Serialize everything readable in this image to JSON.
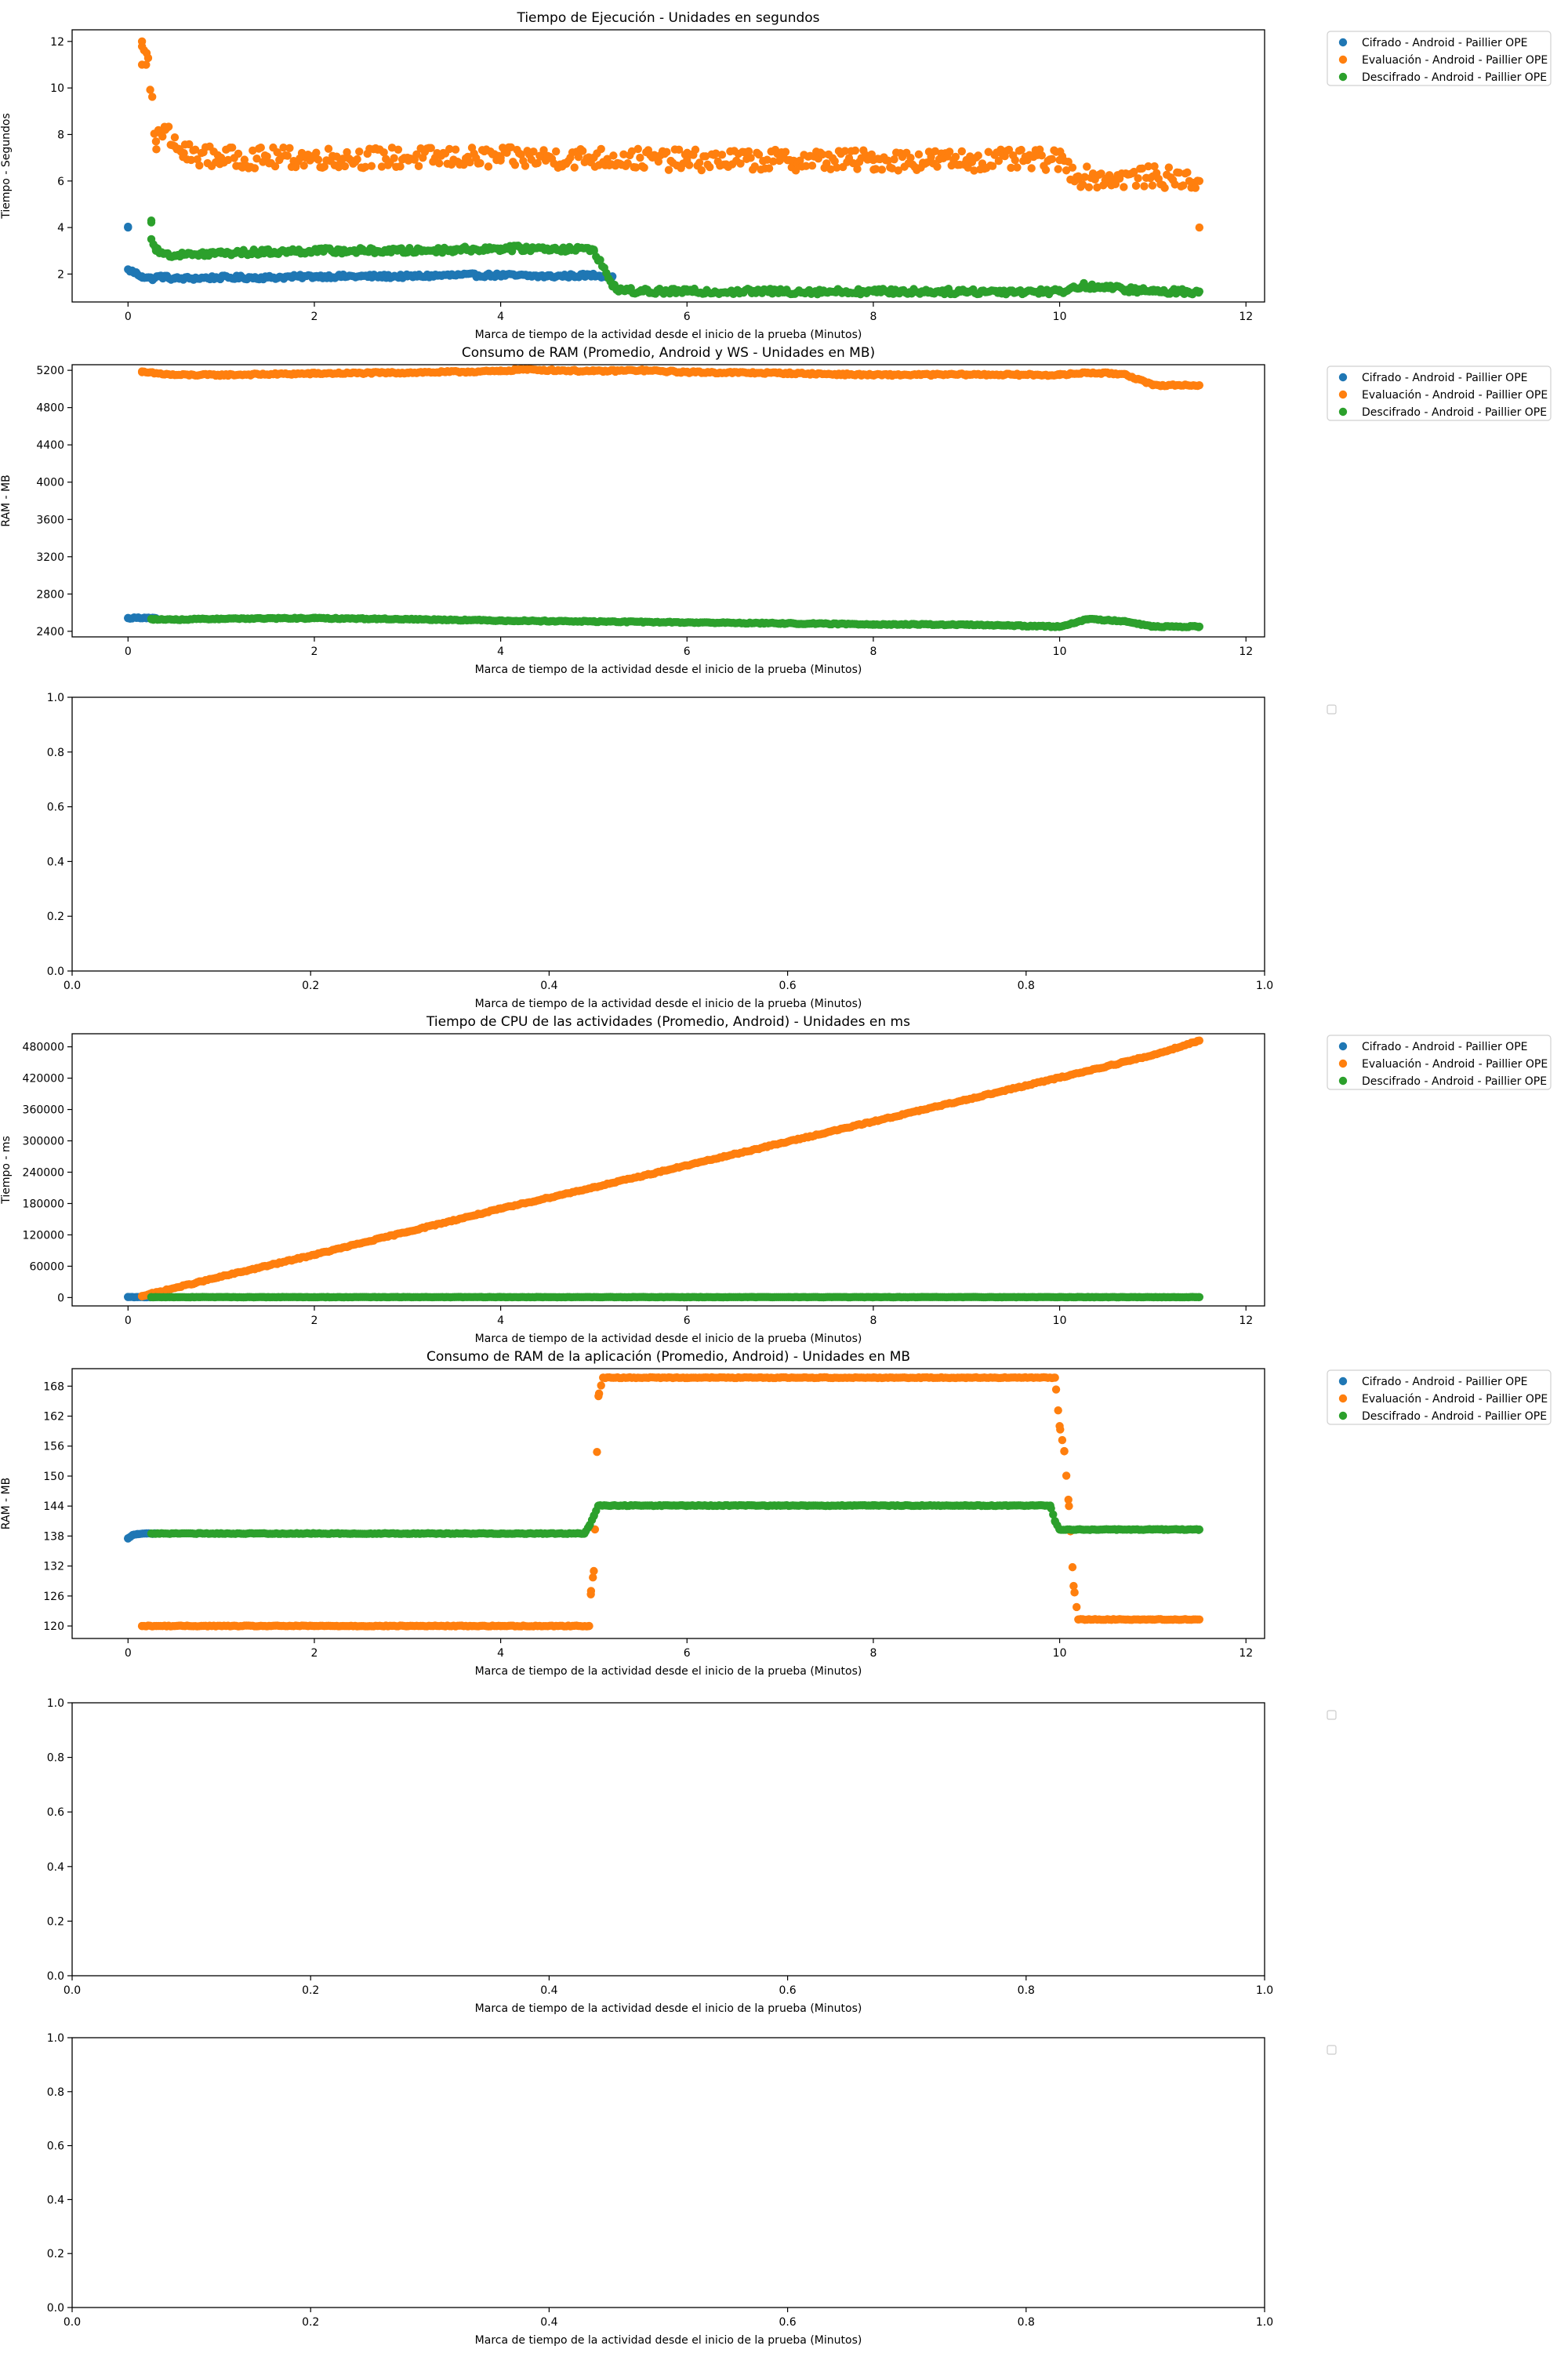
{
  "figure": {
    "xlabel": "Marca de tiempo de la actividad desde el inicio de la prueba (Minutos)",
    "legend_entries": [
      {
        "label": "Cifrado - Android - Paillier OPE",
        "color": "#1f77b4"
      },
      {
        "label": "Evaluación - Android - Paillier OPE",
        "color": "#ff7f0e"
      },
      {
        "label": "Descifrado - Android - Paillier OPE",
        "color": "#2ca02c"
      }
    ]
  },
  "chart_data": [
    {
      "type": "scatter",
      "title": "Tiempo de Ejecución - Unidades en segundos",
      "xlabel": "Marca de tiempo de la actividad desde el inicio de la prueba (Minutos)",
      "ylabel": "Tiempo - Segundos",
      "xlim": [
        -0.6,
        12.2
      ],
      "ylim": [
        0.8,
        12.5
      ],
      "xticks": [
        "0",
        "2",
        "4",
        "6",
        "8",
        "10",
        "12"
      ],
      "yticks": [
        "2",
        "4",
        "6",
        "8",
        "10",
        "12"
      ],
      "legend": "outside-right-top",
      "series": [
        {
          "name": "Cifrado - Android - Paillier OPE",
          "color": "#1f77b4",
          "x": [
            0,
            0,
            0.05,
            0.1,
            0.15,
            0.2,
            0.25,
            0.35,
            0.5,
            1,
            1.5,
            2,
            2.5,
            3,
            3.5,
            4,
            4.5,
            5,
            5.2
          ],
          "y": [
            4.0,
            2.2,
            2.1,
            2.0,
            1.9,
            1.85,
            1.8,
            1.9,
            1.8,
            1.85,
            1.85,
            1.9,
            1.9,
            1.9,
            1.95,
            1.95,
            1.9,
            1.95,
            1.9
          ]
        },
        {
          "name": "Evaluación - Android - Paillier OPE",
          "color": "#ff7f0e",
          "x": [
            0.15,
            0.15,
            0.2,
            0.3,
            0.4,
            0.5,
            0.6,
            1,
            2,
            3,
            4,
            5,
            6,
            7,
            8,
            9,
            10,
            10.2,
            10.5,
            11,
            11.5,
            11.5
          ],
          "y": [
            12.0,
            11.0,
            11.5,
            7.7,
            8.2,
            7.5,
            7.2,
            7.0,
            7.0,
            7.0,
            7.0,
            7.0,
            6.9,
            6.9,
            6.9,
            6.9,
            6.9,
            6.2,
            6.1,
            6.2,
            6.0,
            4.0
          ]
        },
        {
          "name": "Descifrado - Android - Paillier OPE",
          "color": "#2ca02c",
          "x": [
            0.25,
            0.25,
            0.3,
            0.5,
            1,
            1.5,
            2,
            2.5,
            3,
            3.5,
            4,
            4.5,
            5,
            5.2,
            5.3,
            5.5,
            6,
            7,
            8,
            9,
            10,
            10.25,
            11,
            11.5
          ],
          "y": [
            4.3,
            3.5,
            3.0,
            2.8,
            2.9,
            2.95,
            3.0,
            3.0,
            3.0,
            3.05,
            3.1,
            3.1,
            3.05,
            1.5,
            1.3,
            1.25,
            1.25,
            1.25,
            1.25,
            1.25,
            1.25,
            1.5,
            1.25,
            1.25
          ]
        }
      ]
    },
    {
      "type": "scatter",
      "title": "Consumo de RAM (Promedio, Android y WS - Unidades en MB)",
      "xlabel": "Marca de tiempo de la actividad desde el inicio de la prueba (Minutos)",
      "ylabel": "RAM - MB",
      "xlim": [
        -0.6,
        12.2
      ],
      "ylim": [
        2340,
        5260
      ],
      "xticks": [
        "0",
        "2",
        "4",
        "6",
        "8",
        "10",
        "12"
      ],
      "yticks": [
        "2400",
        "2800",
        "3200",
        "3600",
        "4000",
        "4400",
        "4800",
        "5200"
      ],
      "legend": "outside-right-top",
      "series": [
        {
          "name": "Cifrado - Android - Paillier OPE",
          "color": "#1f77b4",
          "x": [
            0,
            0.1,
            0.2,
            0.3
          ],
          "y": [
            2540,
            2545,
            2545,
            2540
          ]
        },
        {
          "name": "Evaluación - Android - Paillier OPE",
          "color": "#ff7f0e",
          "x": [
            0.15,
            0.5,
            1,
            2,
            3,
            4,
            4.2,
            5,
            5.5,
            6,
            7,
            8,
            9,
            10,
            10.3,
            10.7,
            11,
            11.5
          ],
          "y": [
            5180,
            5150,
            5150,
            5165,
            5175,
            5190,
            5210,
            5190,
            5200,
            5180,
            5170,
            5150,
            5155,
            5150,
            5175,
            5160,
            5040,
            5040
          ]
        },
        {
          "name": "Descifrado - Android - Paillier OPE",
          "color": "#2ca02c",
          "x": [
            0.25,
            0.5,
            1,
            2,
            3,
            4,
            5,
            6,
            7,
            8,
            9,
            10,
            10.3,
            10.7,
            11,
            11.5
          ],
          "y": [
            2530,
            2525,
            2535,
            2540,
            2530,
            2515,
            2505,
            2495,
            2485,
            2475,
            2470,
            2450,
            2530,
            2510,
            2450,
            2450
          ]
        }
      ]
    },
    {
      "type": "scatter",
      "title": "",
      "xlabel": "Marca de tiempo de la actividad desde el inicio de la prueba (Minutos)",
      "ylabel": "",
      "xlim": [
        0,
        1
      ],
      "ylim": [
        0,
        1
      ],
      "xticks": [
        "0.0",
        "0.2",
        "0.4",
        "0.6",
        "0.8",
        "1.0"
      ],
      "yticks": [
        "0.0",
        "0.2",
        "0.4",
        "0.6",
        "0.8",
        "1.0"
      ],
      "legend": "outside-right-top-empty",
      "series": []
    },
    {
      "type": "scatter",
      "title": "Tiempo de CPU de las actividades (Promedio, Android) - Unidades en ms",
      "xlabel": "Marca de tiempo de la actividad desde el inicio de la prueba (Minutos)",
      "ylabel": "Tiempo - ms",
      "xlim": [
        -0.6,
        12.2
      ],
      "ylim": [
        -16000,
        505000
      ],
      "xticks": [
        "0",
        "2",
        "4",
        "6",
        "8",
        "10",
        "12"
      ],
      "yticks": [
        "0",
        "60000",
        "120000",
        "180000",
        "240000",
        "300000",
        "360000",
        "420000",
        "480000"
      ],
      "legend": "outside-right-top",
      "series": [
        {
          "name": "Cifrado - Android - Paillier OPE",
          "color": "#1f77b4",
          "x": [
            0,
            0.1,
            0.2,
            0.3
          ],
          "y": [
            1000,
            800,
            800,
            800
          ]
        },
        {
          "name": "Evaluación - Android - Paillier OPE",
          "color": "#ff7f0e",
          "x": [
            0.15,
            1,
            2,
            3,
            4,
            5,
            6,
            7,
            8,
            9,
            10,
            11,
            11.5
          ],
          "y": [
            3000,
            40000,
            82000,
            126000,
            170000,
            211000,
            253000,
            295000,
            337000,
            379000,
            421000,
            464000,
            492000
          ]
        },
        {
          "name": "Descifrado - Android - Paillier OPE",
          "color": "#2ca02c",
          "x": [
            0.25,
            2,
            4,
            6,
            8,
            10,
            11.5
          ],
          "y": [
            800,
            800,
            800,
            800,
            800,
            800,
            800
          ]
        }
      ]
    },
    {
      "type": "scatter",
      "title": "Consumo de RAM de la aplicación (Promedio, Android) - Unidades en MB",
      "xlabel": "Marca de tiempo de la actividad desde el inicio de la prueba (Minutos)",
      "ylabel": "RAM - MB",
      "xlim": [
        -0.6,
        12.2
      ],
      "ylim": [
        117.5,
        171.5
      ],
      "xticks": [
        "0",
        "2",
        "4",
        "6",
        "8",
        "10",
        "12"
      ],
      "yticks": [
        "120",
        "126",
        "132",
        "138",
        "144",
        "150",
        "156",
        "162",
        "168"
      ],
      "legend": "outside-right-top",
      "series": [
        {
          "name": "Cifrado - Android - Paillier OPE",
          "color": "#1f77b4",
          "x": [
            0,
            0.05,
            0.1,
            0.2,
            0.3
          ],
          "y": [
            137.5,
            138.2,
            138.4,
            138.5,
            138.5
          ]
        },
        {
          "name": "Evaluación - Android - Paillier OPE",
          "color": "#ff7f0e",
          "x": [
            0.15,
            1,
            2,
            3,
            4,
            4.95,
            4.97,
            5.0,
            5.05,
            5.1,
            6,
            7,
            8,
            9,
            9.95,
            10.0,
            10.05,
            10.1,
            10.15,
            10.2,
            11,
            11.5
          ],
          "y": [
            120.0,
            120.0,
            120.0,
            120.0,
            120.0,
            120.0,
            127.0,
            131.0,
            166.0,
            169.7,
            169.7,
            169.7,
            169.7,
            169.7,
            169.7,
            160.0,
            155.0,
            144.0,
            128.0,
            121.3,
            121.3,
            121.3
          ]
        },
        {
          "name": "Descifrado - Android - Paillier OPE",
          "color": "#2ca02c",
          "x": [
            0.25,
            1,
            2,
            3,
            4,
            4.9,
            4.95,
            5.0,
            5.05,
            6,
            7,
            8,
            9,
            9.9,
            9.95,
            10.0,
            11,
            11.5
          ],
          "y": [
            138.5,
            138.5,
            138.5,
            138.5,
            138.5,
            138.5,
            140.0,
            142.0,
            144.1,
            144.1,
            144.1,
            144.1,
            144.1,
            144.1,
            141.0,
            139.3,
            139.3,
            139.3
          ]
        }
      ]
    },
    {
      "type": "scatter",
      "title": "",
      "xlabel": "Marca de tiempo de la actividad desde el inicio de la prueba (Minutos)",
      "ylabel": "",
      "xlim": [
        0,
        1
      ],
      "ylim": [
        0,
        1
      ],
      "xticks": [
        "0.0",
        "0.2",
        "0.4",
        "0.6",
        "0.8",
        "1.0"
      ],
      "yticks": [
        "0.0",
        "0.2",
        "0.4",
        "0.6",
        "0.8",
        "1.0"
      ],
      "legend": "outside-right-top-empty",
      "series": []
    },
    {
      "type": "scatter",
      "title": "",
      "xlabel": "Marca de tiempo de la actividad desde el inicio de la prueba (Minutos)",
      "ylabel": "",
      "xlim": [
        0,
        1
      ],
      "ylim": [
        0,
        1
      ],
      "xticks": [
        "0.0",
        "0.2",
        "0.4",
        "0.6",
        "0.8",
        "1.0"
      ],
      "yticks": [
        "0.0",
        "0.2",
        "0.4",
        "0.6",
        "0.8",
        "1.0"
      ],
      "legend": "outside-right-top-empty",
      "series": []
    }
  ]
}
